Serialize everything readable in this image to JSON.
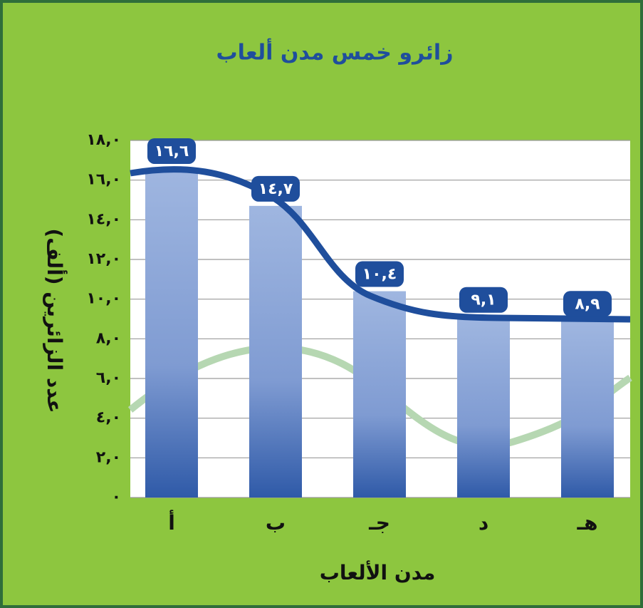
{
  "chart_data": {
    "type": "bar",
    "title": "زائرو خمس مدن ألعاب",
    "x_label": "مدن الألعاب",
    "y_label": "عدد الزائرين (ألف)",
    "categories": [
      "أ",
      "ب",
      "جـ",
      "د",
      "هـ"
    ],
    "values": [
      16.6,
      14.7,
      10.4,
      9.1,
      8.9
    ],
    "value_labels": [
      "١٦,٦",
      "١٤,٧",
      "١٠,٤",
      "٩,١",
      "٨,٩"
    ],
    "color": "#2f5aa8",
    "ylim": [
      0,
      18
    ],
    "yticks": [
      {
        "value": 0,
        "label": "٠"
      },
      {
        "value": 2,
        "label": "٢,٠"
      },
      {
        "value": 4,
        "label": "٤,٠"
      },
      {
        "value": 6,
        "label": "٦,٠"
      },
      {
        "value": 8,
        "label": "٨,٠"
      },
      {
        "value": 10,
        "label": "١٠,٠"
      },
      {
        "value": 12,
        "label": "١٢,٠"
      },
      {
        "value": 14,
        "label": "١٤,٠"
      },
      {
        "value": 16,
        "label": "١٦,٠"
      },
      {
        "value": 18,
        "label": "١٨,٠"
      }
    ],
    "grid": true
  }
}
